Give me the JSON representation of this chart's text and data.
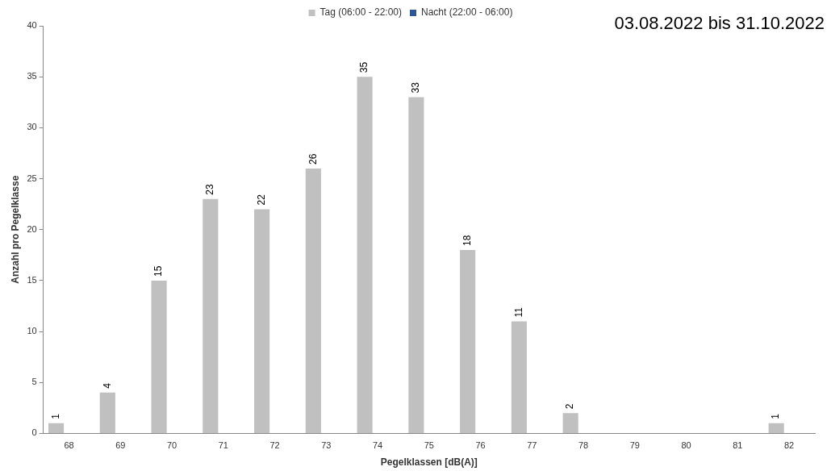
{
  "chart_data": {
    "type": "bar",
    "title": "03.08.2022 bis 31.10.2022",
    "xlabel": "Pegelklassen [dB(A)]",
    "ylabel": "Anzahl pro Pegelklasse",
    "categories": [
      "68",
      "69",
      "70",
      "71",
      "72",
      "73",
      "74",
      "75",
      "76",
      "77",
      "78",
      "79",
      "80",
      "81",
      "82"
    ],
    "series": [
      {
        "name": "Tag (06:00 - 22:00)",
        "color": "#c0c0c0",
        "values": [
          1,
          4,
          15,
          23,
          22,
          26,
          35,
          33,
          18,
          11,
          2,
          null,
          null,
          null,
          1
        ],
        "value_labels": [
          "1",
          "4",
          "15",
          "23",
          "22",
          "26",
          "35",
          "33",
          "18",
          "11",
          "2",
          null,
          null,
          null,
          "1"
        ]
      },
      {
        "name": "Nacht (22:00 - 06:00)",
        "color": "#2f5597",
        "values": [
          null,
          null,
          null,
          null,
          null,
          null,
          null,
          null,
          null,
          null,
          null,
          null,
          null,
          null,
          null
        ]
      }
    ],
    "ylim": [
      0,
      40
    ],
    "yticks": [
      0,
      5,
      10,
      15,
      20,
      25,
      30,
      35,
      40
    ],
    "grid": false,
    "legend": "top"
  }
}
